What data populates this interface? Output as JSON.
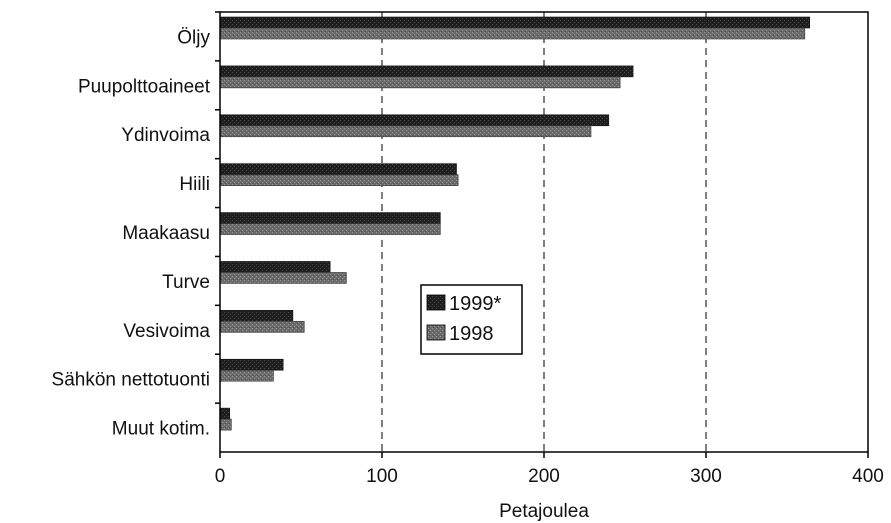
{
  "chart_data": {
    "type": "bar",
    "orientation": "horizontal",
    "title": "",
    "xlabel": "Petajoulea",
    "ylabel": "",
    "xlim": [
      0,
      400
    ],
    "xticks": [
      "0",
      "100",
      "200",
      "300",
      "400"
    ],
    "grid": "vertical dashed",
    "legend_position": "center",
    "categories": [
      "Öljy",
      "Puupolttoaineet",
      "Ydinvoima",
      "Hiili",
      "Maakaasu",
      "Turve",
      "Vesivoima",
      "Sähkön nettotuonti",
      "Muut kotim."
    ],
    "series": [
      {
        "name": "1999*",
        "color": "#1a1a1a",
        "values": [
          364,
          255,
          240,
          146,
          136,
          68,
          45,
          39,
          6
        ]
      },
      {
        "name": "1998",
        "color": "#6e6e6e",
        "values": [
          361,
          247,
          229,
          147,
          136,
          78,
          52,
          33,
          7
        ]
      }
    ]
  }
}
